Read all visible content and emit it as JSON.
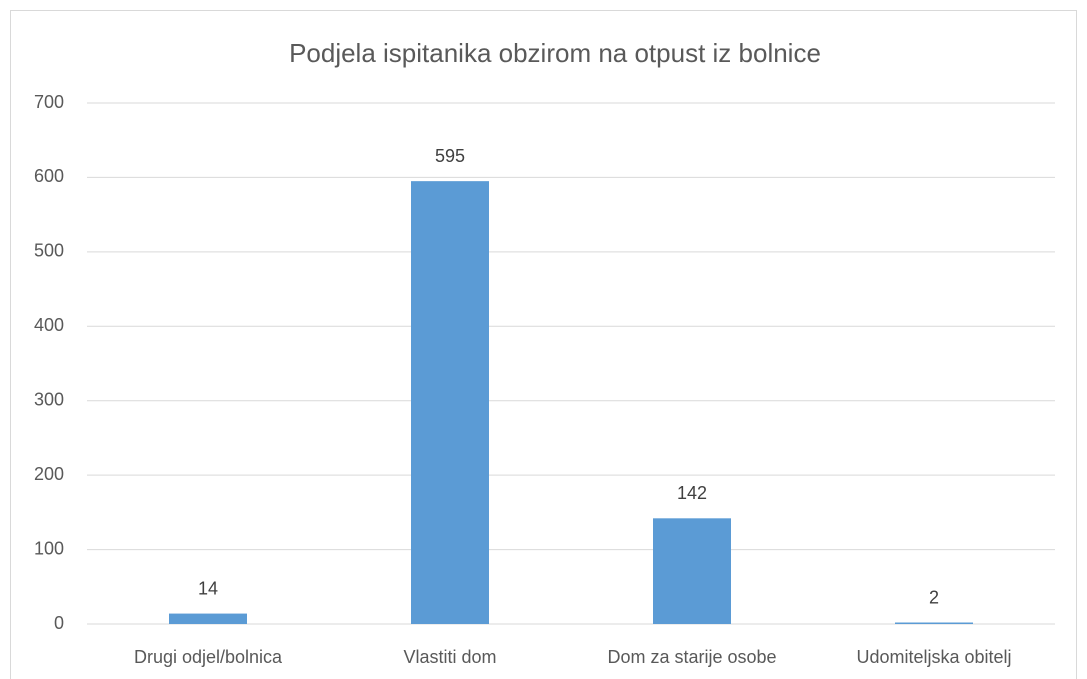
{
  "chart_data": {
    "type": "bar",
    "title": "Podjela ispitanika obzirom na otpust iz bolnice",
    "categories": [
      "Drugi odjel/bolnica",
      "Vlastiti dom",
      "Dom za starije osobe",
      "Udomiteljska obitelj"
    ],
    "values": [
      14,
      595,
      142,
      2
    ],
    "color": "#5b9bd5",
    "ylim": [
      0,
      700
    ],
    "yticks": [
      0,
      100,
      200,
      300,
      400,
      500,
      600,
      700
    ],
    "grid": true
  }
}
